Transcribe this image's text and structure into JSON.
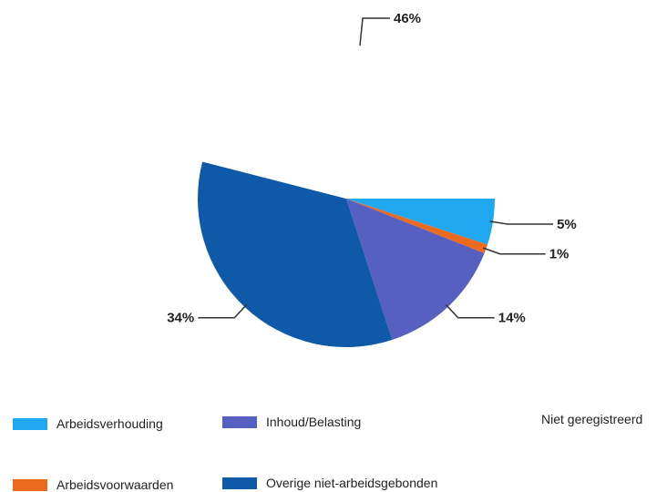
{
  "chart_data": {
    "type": "pie",
    "categories": [
      "Arbeidsverhouding",
      "Arbeidsvoorwaarden",
      "Inhoud/Belasting",
      "Overige niet-arbeidsgebonden",
      "Niet geregistreerd"
    ],
    "values": [
      5,
      1,
      14,
      34,
      46
    ],
    "labels": [
      "5%",
      "1%",
      "14%",
      "34%",
      "46%"
    ],
    "colors": [
      "#1fa8f0",
      "#ec6a1e",
      "#5660c0",
      "#0f5aa8",
      "#ffffff"
    ],
    "legend": [
      {
        "label": "Arbeidsverhouding",
        "color": "#1fa8f0"
      },
      {
        "label": "Inhoud/Belasting",
        "color": "#5660c0"
      },
      {
        "label": "Niet geregistreerd",
        "color": "#ffffff"
      },
      {
        "label": "Arbeidsvoorwaarden",
        "color": "#ec6a1e"
      },
      {
        "label": "Overige niet-arbeidsgebonden",
        "color": "#0f5aa8"
      }
    ],
    "legend_position": "bottom"
  }
}
